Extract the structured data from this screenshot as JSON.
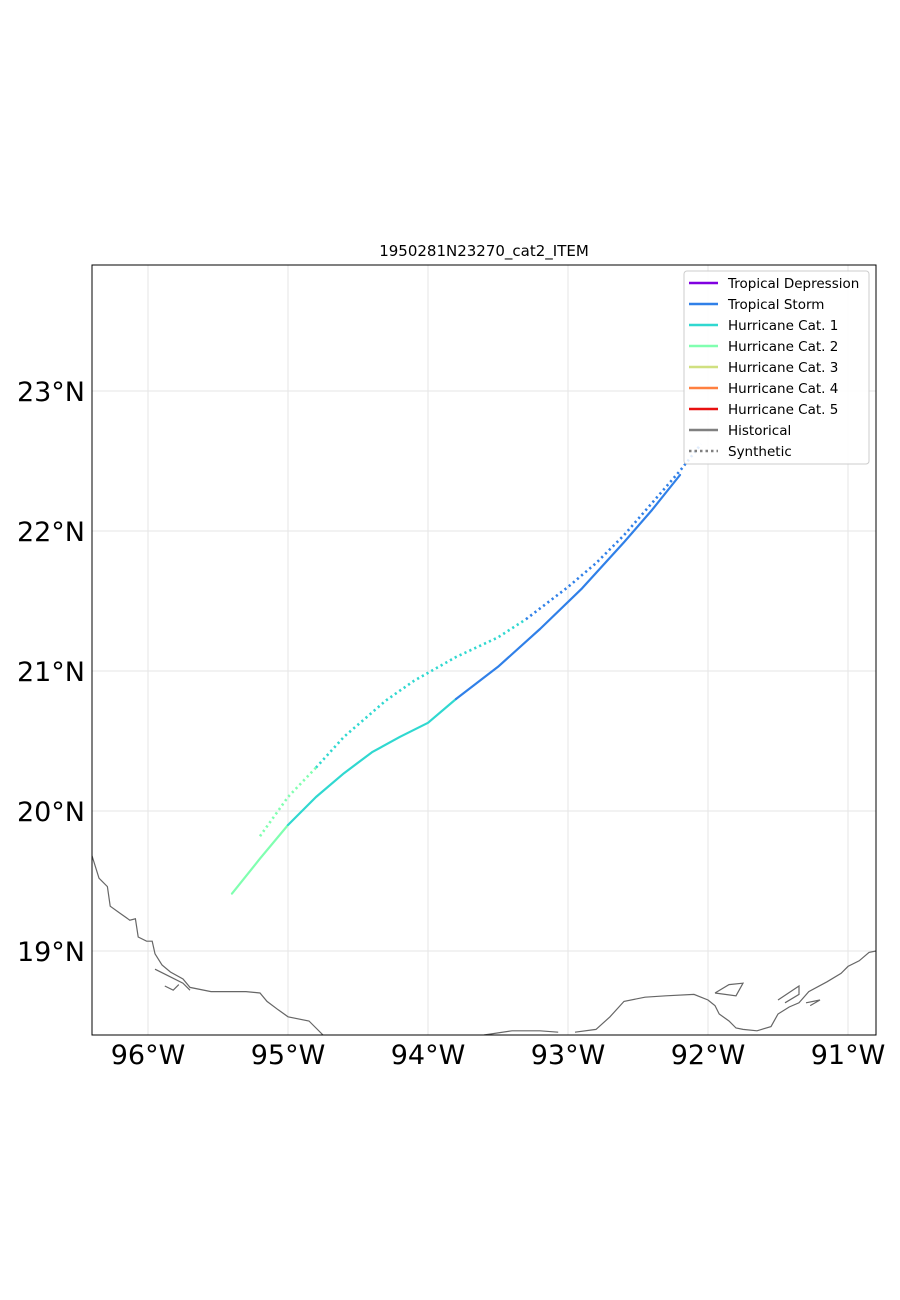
{
  "title": "1950281N23270_cat2_ITEM",
  "chart_data": {
    "type": "line",
    "title": "1950281N23270_cat2_ITEM",
    "xlim": [
      -96.4,
      -90.8
    ],
    "ylim": [
      18.4,
      23.9
    ],
    "x_ticks": [
      {
        "value": -96,
        "label": "96°W"
      },
      {
        "value": -95,
        "label": "95°W"
      },
      {
        "value": -94,
        "label": "94°W"
      },
      {
        "value": -93,
        "label": "93°W"
      },
      {
        "value": -92,
        "label": "92°W"
      },
      {
        "value": -91,
        "label": "91°W"
      }
    ],
    "y_ticks": [
      {
        "value": 19,
        "label": "19°N"
      },
      {
        "value": 20,
        "label": "20°N"
      },
      {
        "value": 21,
        "label": "21°N"
      },
      {
        "value": 22,
        "label": "22°N"
      },
      {
        "value": 23,
        "label": "23°N"
      }
    ],
    "grid": true,
    "legend_position": "top-right",
    "legend": [
      {
        "label": "Tropical Depression",
        "color": "#8000e0",
        "style": "solid"
      },
      {
        "label": "Tropical Storm",
        "color": "#3080e8",
        "style": "solid"
      },
      {
        "label": "Hurricane Cat. 1",
        "color": "#30d8d0",
        "style": "solid"
      },
      {
        "label": "Hurricane Cat. 2",
        "color": "#80ffb0",
        "style": "solid"
      },
      {
        "label": "Hurricane Cat. 3",
        "color": "#d0e080",
        "style": "solid"
      },
      {
        "label": "Hurricane Cat. 4",
        "color": "#ff8040",
        "style": "solid"
      },
      {
        "label": "Hurricane Cat. 5",
        "color": "#e81010",
        "style": "solid"
      },
      {
        "label": "Historical",
        "color": "#808080",
        "style": "solid"
      },
      {
        "label": "Synthetic",
        "color": "#808080",
        "style": "dotted"
      }
    ],
    "series": [
      {
        "track": "historical",
        "segments": [
          {
            "category": "Hurricane Cat. 2",
            "color": "#80ffb0",
            "points": [
              [
                -95.4,
                19.41
              ],
              [
                -95.2,
                19.66
              ],
              [
                -95.0,
                19.9
              ]
            ]
          },
          {
            "category": "Hurricane Cat. 1",
            "color": "#30d8d0",
            "points": [
              [
                -95.0,
                19.9
              ],
              [
                -94.8,
                20.1
              ],
              [
                -94.6,
                20.27
              ],
              [
                -94.4,
                20.42
              ],
              [
                -94.2,
                20.53
              ],
              [
                -94.0,
                20.63
              ],
              [
                -93.8,
                20.8
              ]
            ]
          },
          {
            "category": "Tropical Storm",
            "color": "#3080e8",
            "points": [
              [
                -93.8,
                20.8
              ],
              [
                -93.5,
                21.03
              ],
              [
                -93.2,
                21.3
              ],
              [
                -92.9,
                21.59
              ],
              [
                -92.6,
                21.92
              ],
              [
                -92.4,
                22.15
              ],
              [
                -92.2,
                22.4
              ]
            ]
          }
        ]
      },
      {
        "track": "synthetic",
        "segments": [
          {
            "category": "Hurricane Cat. 2",
            "color": "#80ffb0",
            "points": [
              [
                -95.2,
                19.82
              ],
              [
                -95.0,
                20.1
              ],
              [
                -94.8,
                20.31
              ]
            ]
          },
          {
            "category": "Hurricane Cat. 1",
            "color": "#30d8d0",
            "points": [
              [
                -94.8,
                20.31
              ],
              [
                -94.6,
                20.53
              ],
              [
                -94.3,
                20.79
              ],
              [
                -94.1,
                20.93
              ],
              [
                -93.8,
                21.1
              ],
              [
                -93.5,
                21.24
              ],
              [
                -93.3,
                21.37
              ]
            ]
          },
          {
            "category": "Tropical Storm",
            "color": "#3080e8",
            "points": [
              [
                -93.3,
                21.37
              ],
              [
                -93.0,
                21.6
              ],
              [
                -92.8,
                21.77
              ],
              [
                -92.6,
                21.97
              ],
              [
                -92.4,
                22.2
              ],
              [
                -92.2,
                22.43
              ],
              [
                -92.05,
                22.62
              ]
            ]
          }
        ]
      }
    ],
    "coastline": [
      [
        [
          -96.4,
          19.68
        ],
        [
          -96.35,
          19.52
        ],
        [
          -96.29,
          19.46
        ],
        [
          -96.27,
          19.32
        ],
        [
          -96.2,
          19.27
        ],
        [
          -96.13,
          19.22
        ],
        [
          -96.09,
          19.23
        ],
        [
          -96.07,
          19.1
        ],
        [
          -96.01,
          19.07
        ],
        [
          -95.97,
          19.07
        ],
        [
          -95.95,
          18.98
        ],
        [
          -95.9,
          18.9
        ],
        [
          -95.84,
          18.85
        ],
        [
          -95.75,
          18.8
        ],
        [
          -95.7,
          18.74
        ],
        [
          -95.55,
          18.71
        ],
        [
          -95.3,
          18.71
        ],
        [
          -95.2,
          18.7
        ],
        [
          -95.15,
          18.64
        ],
        [
          -95.07,
          18.58
        ],
        [
          -95.0,
          18.53
        ],
        [
          -94.85,
          18.5
        ],
        [
          -94.8,
          18.45
        ],
        [
          -94.75,
          18.4
        ]
      ],
      [
        [
          -93.6,
          18.4
        ],
        [
          -93.4,
          18.43
        ],
        [
          -93.2,
          18.43
        ],
        [
          -93.07,
          18.42
        ]
      ],
      [
        [
          -92.95,
          18.42
        ],
        [
          -92.8,
          18.44
        ],
        [
          -92.7,
          18.53
        ],
        [
          -92.6,
          18.64
        ],
        [
          -92.45,
          18.67
        ],
        [
          -92.3,
          18.68
        ],
        [
          -92.1,
          18.69
        ],
        [
          -92.0,
          18.65
        ],
        [
          -91.95,
          18.61
        ],
        [
          -91.92,
          18.55
        ],
        [
          -91.85,
          18.5
        ],
        [
          -91.8,
          18.45
        ],
        [
          -91.75,
          18.44
        ],
        [
          -91.65,
          18.43
        ],
        [
          -91.55,
          18.46
        ],
        [
          -91.5,
          18.55
        ],
        [
          -91.42,
          18.6
        ],
        [
          -91.35,
          18.63
        ],
        [
          -91.28,
          18.71
        ],
        [
          -91.15,
          18.78
        ],
        [
          -91.05,
          18.84
        ],
        [
          -91.0,
          18.89
        ],
        [
          -90.92,
          18.93
        ],
        [
          -90.85,
          18.99
        ],
        [
          -90.8,
          19.0
        ]
      ],
      [
        [
          -95.95,
          18.87
        ],
        [
          -95.85,
          18.82
        ],
        [
          -95.75,
          18.77
        ],
        [
          -95.7,
          18.72
        ]
      ],
      [
        [
          -95.88,
          18.75
        ],
        [
          -95.82,
          18.72
        ],
        [
          -95.78,
          18.76
        ]
      ],
      [
        [
          -91.95,
          18.7
        ],
        [
          -91.85,
          18.76
        ],
        [
          -91.75,
          18.77
        ],
        [
          -91.8,
          18.68
        ],
        [
          -91.95,
          18.7
        ]
      ],
      [
        [
          -91.45,
          18.63
        ],
        [
          -91.35,
          18.69
        ],
        [
          -91.35,
          18.75
        ],
        [
          -91.5,
          18.65
        ]
      ],
      [
        [
          -91.3,
          18.63
        ],
        [
          -91.2,
          18.65
        ],
        [
          -91.27,
          18.61
        ]
      ]
    ]
  }
}
